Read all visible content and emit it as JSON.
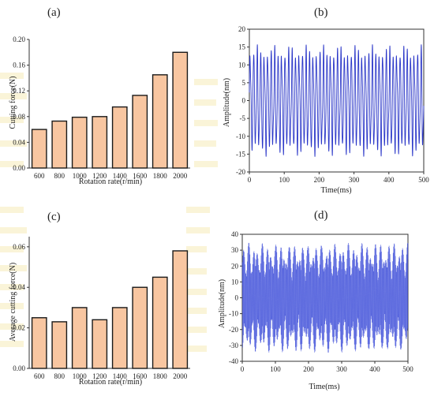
{
  "chart_data": [
    {
      "panel": "(a)",
      "type": "bar",
      "categories": [
        "600",
        "800",
        "1000",
        "1200",
        "1400",
        "1600",
        "1800",
        "2000"
      ],
      "values": [
        0.06,
        0.073,
        0.079,
        0.08,
        0.095,
        0.113,
        0.145,
        0.18
      ],
      "xlabel": "Rotation rate(r/min)",
      "ylabel": "Cutting force(N)",
      "ylim": [
        0,
        0.2
      ],
      "yticks": [
        "0.00",
        "0.04",
        "0.08",
        "0.12",
        "0.16",
        "0.20"
      ],
      "bar_color": "#f8c6a1",
      "edge_color": "#1a1a1a"
    },
    {
      "panel": "(b)",
      "type": "line",
      "xlabel": "Time(ms)",
      "ylabel": "Amplitude(nm)",
      "xlim": [
        0,
        500
      ],
      "ylim": [
        -20,
        20
      ],
      "xticks": [
        "0",
        "100",
        "200",
        "300",
        "400",
        "500"
      ],
      "yticks": [
        "-20",
        "-15",
        "-10",
        "-5",
        "0",
        "5",
        "10",
        "15",
        "20"
      ],
      "signal": "periodic oscillation, ~10 ms period",
      "amplitude_range": [
        -16.5,
        16.5
      ],
      "line_color": "#2a36c8"
    },
    {
      "panel": "(c)",
      "type": "bar",
      "categories": [
        "600",
        "800",
        "1000",
        "1200",
        "1400",
        "1600",
        "1800",
        "2000"
      ],
      "values": [
        0.025,
        0.023,
        0.03,
        0.024,
        0.03,
        0.04,
        0.045,
        0.058
      ],
      "xlabel": "Rotation rate(r/min)",
      "ylabel": "Average cutting force(N)",
      "ylim": [
        0,
        0.065
      ],
      "yticks": [
        "0.00",
        "0.02",
        "0.04",
        "0.06"
      ],
      "bar_color": "#f8c6a1",
      "edge_color": "#1a1a1a"
    },
    {
      "panel": "(d)",
      "type": "line",
      "xlabel": "Time(ms)",
      "ylabel": "Amplitude(nm)",
      "xlim": [
        0,
        500
      ],
      "ylim": [
        -40,
        40
      ],
      "xticks": [
        "0",
        "100",
        "200",
        "300",
        "400",
        "500"
      ],
      "yticks": [
        "-40",
        "-30",
        "-20",
        "-10",
        "0",
        "10",
        "20",
        "30",
        "40"
      ],
      "signal": "dense high-frequency oscillation with beat envelope, ~20 ms beat period",
      "amplitude_range": [
        -35,
        35
      ],
      "line_color": "#3b4cd8"
    }
  ]
}
